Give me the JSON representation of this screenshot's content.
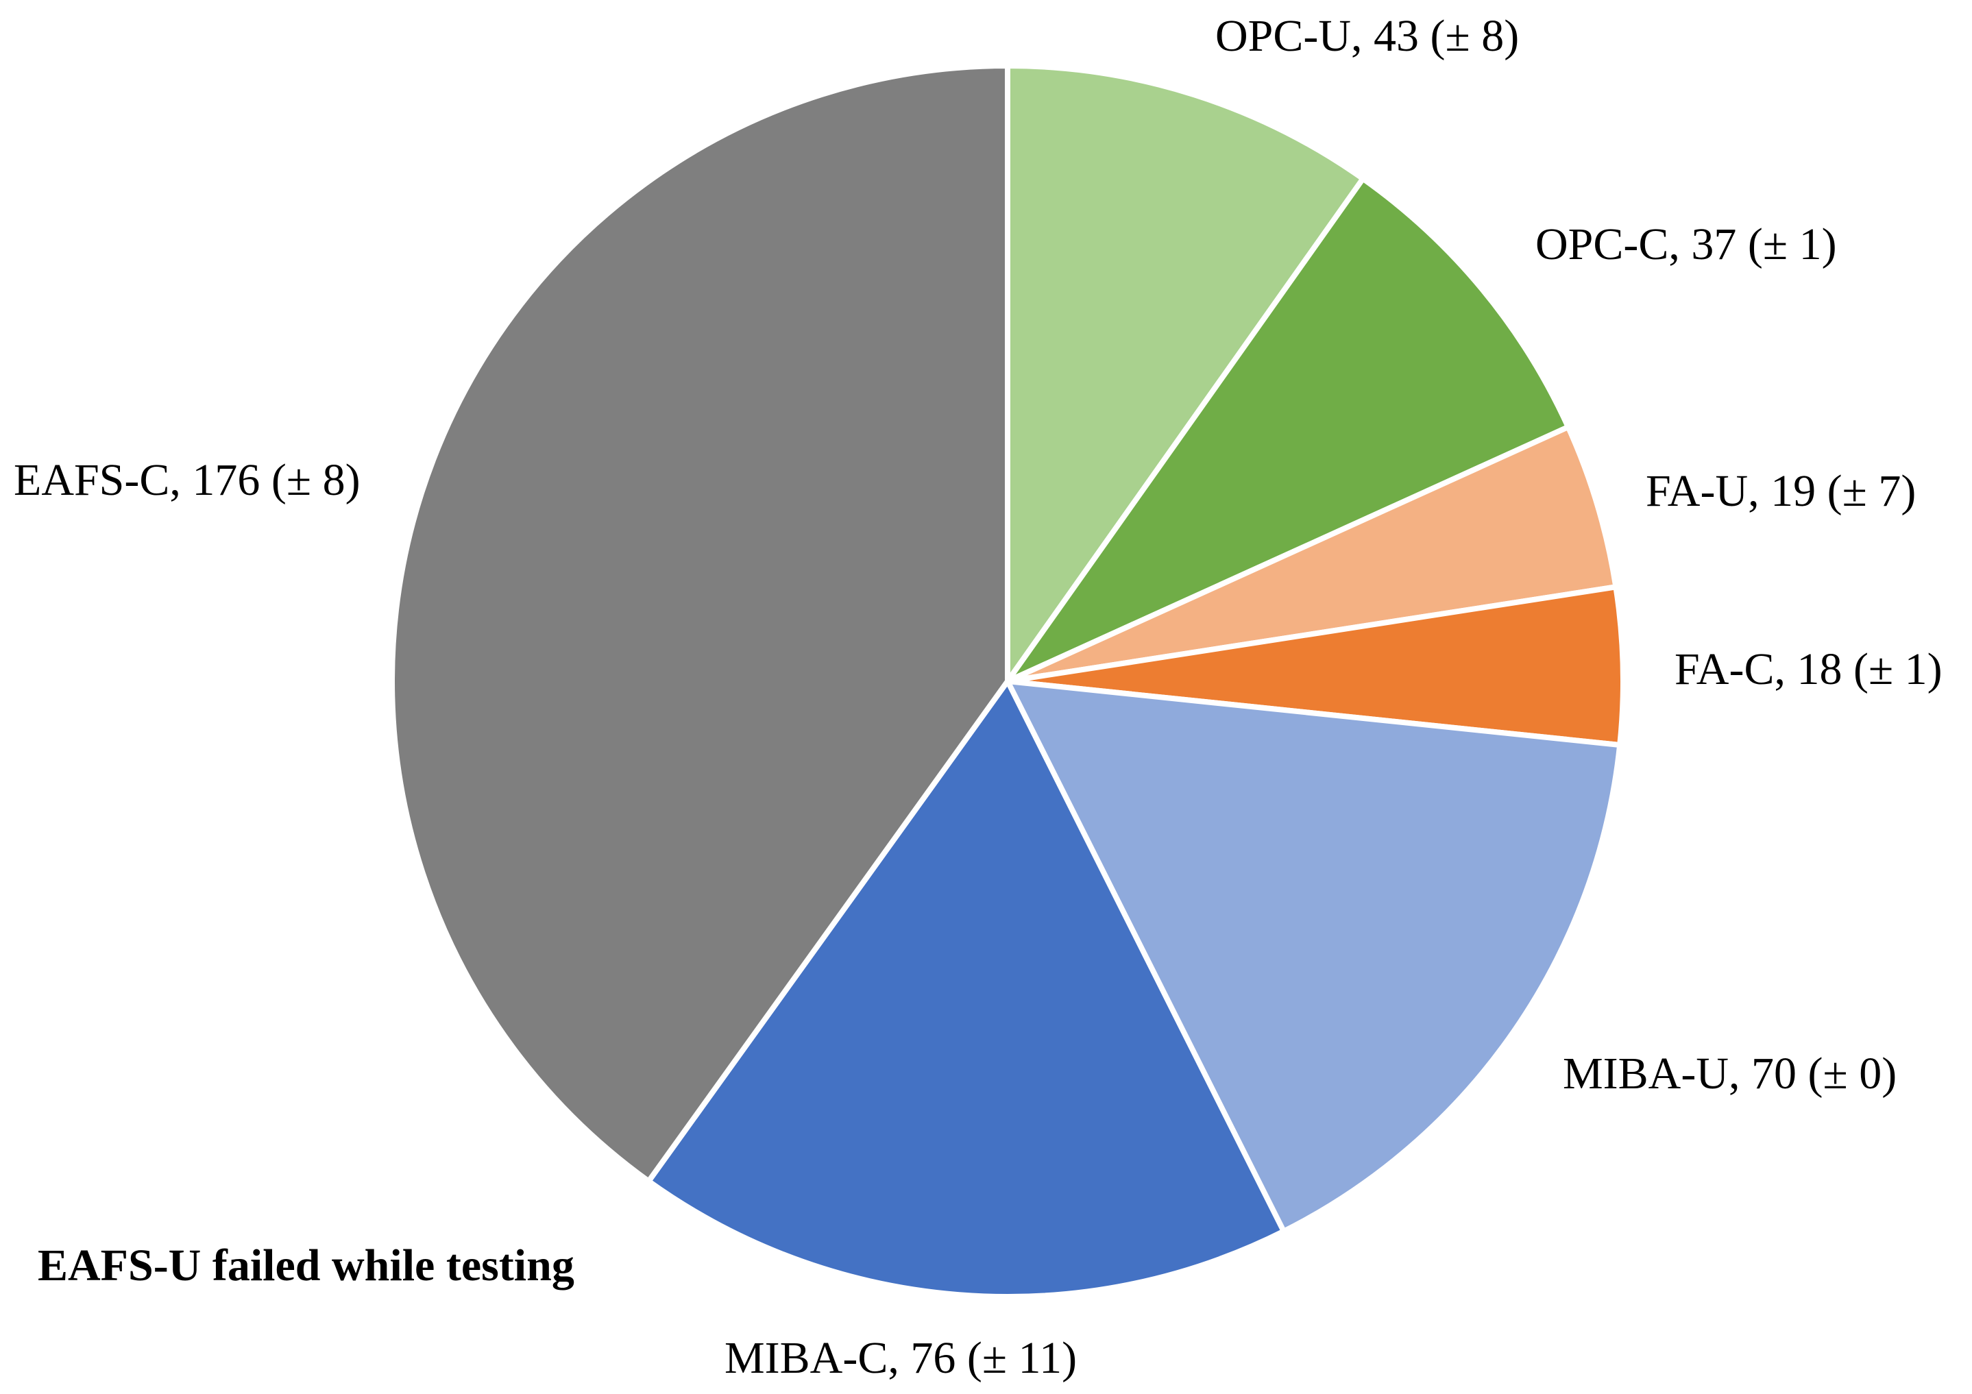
{
  "chart_data": {
    "type": "pie",
    "title": "",
    "start_angle_deg": 0,
    "direction": "clockwise",
    "slices": [
      {
        "name": "OPC-U",
        "value": 43,
        "error": 8,
        "label": "OPC-U, 43 (± 8)",
        "color": "#A9D18E"
      },
      {
        "name": "OPC-C",
        "value": 37,
        "error": 1,
        "label": "OPC-C, 37 (± 1)",
        "color": "#70AD47"
      },
      {
        "name": "FA-U",
        "value": 19,
        "error": 7,
        "label": "FA-U, 19 (± 7)",
        "color": "#F4B183"
      },
      {
        "name": "FA-C",
        "value": 18,
        "error": 1,
        "label": "FA-C, 18 (± 1)",
        "color": "#ED7D31"
      },
      {
        "name": "MIBA-U",
        "value": 70,
        "error": 0,
        "label": "MIBA-U, 70 (± 0)",
        "color": "#8FAADC"
      },
      {
        "name": "MIBA-C",
        "value": 76,
        "error": 11,
        "label": "MIBA-C, 76 (± 11)",
        "color": "#4472C4"
      },
      {
        "name": "EAFS-C",
        "value": 176,
        "error": 8,
        "label": "EAFS-C, 176 (± 8)",
        "color": "#7F7F7F"
      }
    ],
    "annotation": "EAFS-U failed while testing",
    "legend": "none"
  }
}
